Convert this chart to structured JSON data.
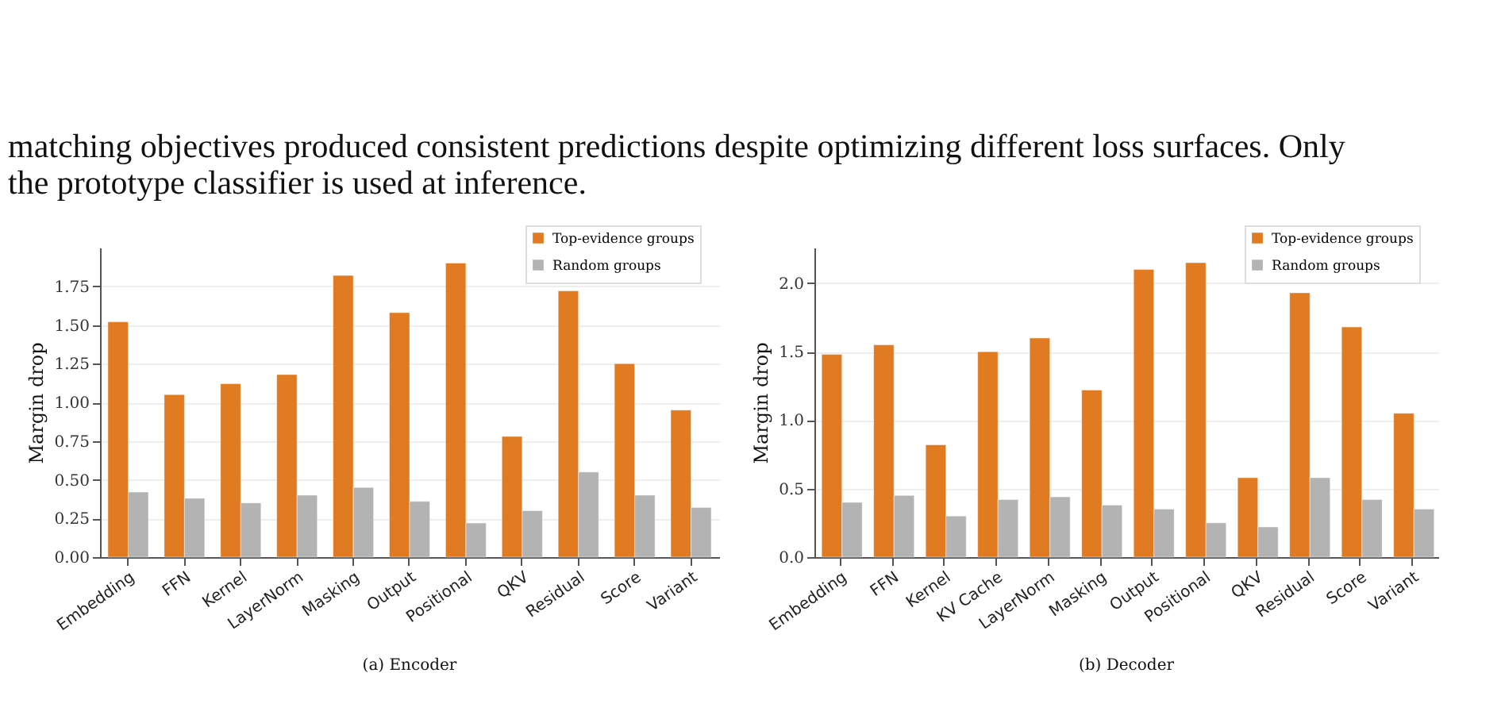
{
  "chart_data": [
    {
      "type": "bar",
      "ylabel": "Margin drop",
      "categories": [
        "Embedding",
        "FFN",
        "Kernel",
        "LayerNorm",
        "Masking",
        "Output",
        "Positional",
        "QKV",
        "Residual",
        "Score",
        "Variant"
      ],
      "series": [
        {
          "name": "Top-evidence groups",
          "color": "#e07b22",
          "values": [
            1.52,
            1.05,
            1.12,
            1.18,
            1.82,
            1.58,
            1.9,
            0.78,
            1.72,
            1.25,
            0.95
          ]
        },
        {
          "name": "Random groups",
          "color": "#b3b3b3",
          "values": [
            0.42,
            0.38,
            0.35,
            0.4,
            0.45,
            0.36,
            0.22,
            0.3,
            0.55,
            0.4,
            0.32
          ]
        }
      ],
      "ylim": [
        0,
        2.0
      ],
      "yticks": [
        {
          "value": 0,
          "label": "0.00"
        },
        {
          "value": 0.25,
          "label": "0.25"
        },
        {
          "value": 0.5,
          "label": "0.50"
        },
        {
          "value": 0.75,
          "label": "0.75"
        },
        {
          "value": 1,
          "label": "1.00"
        },
        {
          "value": 1.25,
          "label": "1.25"
        },
        {
          "value": 1.5,
          "label": "1.50"
        },
        {
          "value": 1.75,
          "label": "1.75"
        }
      ],
      "grid": "y",
      "legend": "top right",
      "annotations": [
        "matching objectives produced consistent predictions despite optimizing different loss surfaces. Only",
        "the prototype classifier is used at inference.",
        "(a) Encoder"
      ]
    },
    {
      "type": "bar",
      "ylabel": "Margin drop",
      "categories": [
        "Embedding",
        "FFN",
        "Kernel",
        "KV Cache",
        "LayerNorm",
        "Masking",
        "Output",
        "Positional",
        "QKV",
        "Residual",
        "Score",
        "Variant"
      ],
      "series": [
        {
          "name": "Top-evidence groups",
          "color": "#e07b22",
          "values": [
            1.48,
            1.55,
            0.82,
            1.5,
            1.6,
            1.22,
            2.1,
            2.15,
            0.58,
            1.93,
            1.68,
            1.05
          ]
        },
        {
          "name": "Random groups",
          "color": "#b3b3b3",
          "values": [
            0.4,
            0.45,
            0.3,
            0.42,
            0.44,
            0.38,
            0.35,
            0.25,
            0.22,
            0.58,
            0.42,
            0.35
          ]
        }
      ],
      "ylim": [
        0,
        2.26
      ],
      "yticks": [
        {
          "value": 0,
          "label": "0.0"
        },
        {
          "value": 0.5,
          "label": "0.5"
        },
        {
          "value": 1,
          "label": "1.0"
        },
        {
          "value": 1.5,
          "label": "1.5"
        },
        {
          "value": 2,
          "label": "2.0"
        }
      ],
      "grid": "y",
      "legend": "top right",
      "annotations": [
        "(b) Decoder"
      ]
    }
  ]
}
